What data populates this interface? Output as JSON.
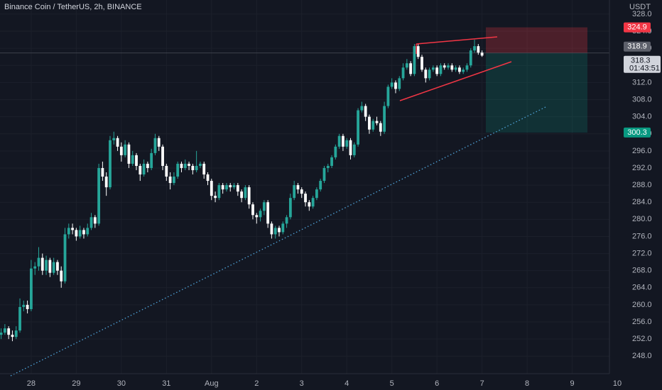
{
  "chart_data": {
    "type": "candlestick",
    "title": "Binance Coin / TetherUS, 2h, BINANCE",
    "currency": "USDT",
    "up_color": "#26a69a",
    "down_color": "#ffffff",
    "grid": true,
    "ylim": [
      243.9,
      331.3
    ],
    "yticks": [
      {
        "value": 248,
        "label": "248.0"
      },
      {
        "value": 252,
        "label": "252.0"
      },
      {
        "value": 256,
        "label": "256.0"
      },
      {
        "value": 260,
        "label": "260.0"
      },
      {
        "value": 264,
        "label": "264.0"
      },
      {
        "value": 268,
        "label": "268.0"
      },
      {
        "value": 272,
        "label": "272.0"
      },
      {
        "value": 276,
        "label": "276.0"
      },
      {
        "value": 280,
        "label": "280.0"
      },
      {
        "value": 284,
        "label": "284.0"
      },
      {
        "value": 288,
        "label": "288.0"
      },
      {
        "value": 292,
        "label": "292.0"
      },
      {
        "value": 296,
        "label": "296.0"
      },
      {
        "value": 300,
        "label": "300.0"
      },
      {
        "value": 304,
        "label": "304.0"
      },
      {
        "value": 308,
        "label": "308.0"
      },
      {
        "value": 312,
        "label": "312.0"
      },
      {
        "value": 316,
        "label": "316.0"
      },
      {
        "value": 320,
        "label": "320.0"
      },
      {
        "value": 324,
        "label": "324.0"
      },
      {
        "value": 328,
        "label": "328.0"
      }
    ],
    "xlim": [
      -0.3,
      175.9
    ],
    "xticks": [
      {
        "value": 8,
        "label": "28"
      },
      {
        "value": 20,
        "label": "29"
      },
      {
        "value": 32,
        "label": "30"
      },
      {
        "value": 44,
        "label": "31"
      },
      {
        "value": 56,
        "label": "Aug"
      },
      {
        "value": 68,
        "label": "2"
      },
      {
        "value": 80,
        "label": "3"
      },
      {
        "value": 92,
        "label": "4"
      },
      {
        "value": 104,
        "label": "5"
      },
      {
        "value": 116,
        "label": "6"
      },
      {
        "value": 128,
        "label": "7"
      },
      {
        "value": 140,
        "label": "8"
      },
      {
        "value": 152,
        "label": "9"
      },
      {
        "value": 164,
        "label": "10"
      }
    ],
    "candles": [
      [
        253,
        254.5,
        252,
        253.5
      ],
      [
        253.5,
        255.5,
        253,
        254.5
      ],
      [
        254.5,
        255,
        252,
        253
      ],
      [
        253,
        254,
        251.5,
        252.5
      ],
      [
        252.5,
        255,
        252,
        254
      ],
      [
        254,
        261.5,
        253.5,
        259.5
      ],
      [
        259.5,
        261,
        258.5,
        260
      ],
      [
        260,
        261,
        258,
        259
      ],
      [
        259,
        270.5,
        258.5,
        268.5
      ],
      [
        268.5,
        270,
        267,
        269
      ],
      [
        269,
        273.5,
        268,
        271
      ],
      [
        271,
        272,
        267,
        268
      ],
      [
        268,
        271.5,
        267,
        270.5
      ],
      [
        270.5,
        271,
        266.5,
        267.5
      ],
      [
        267.5,
        271,
        267,
        270
      ],
      [
        270,
        270.5,
        267,
        268
      ],
      [
        268,
        269,
        264,
        265.5
      ],
      [
        265.5,
        278,
        265,
        276.5
      ],
      [
        276.5,
        279,
        275.5,
        278
      ],
      [
        278,
        279,
        276.5,
        277.5
      ],
      [
        277.5,
        278,
        275,
        276
      ],
      [
        276,
        278.5,
        275.5,
        277.5
      ],
      [
        277.5,
        278,
        275.5,
        276.5
      ],
      [
        276.5,
        279,
        276,
        278
      ],
      [
        278,
        281.5,
        277.5,
        280.5
      ],
      [
        280.5,
        281,
        278,
        279
      ],
      [
        279,
        293,
        278.5,
        292
      ],
      [
        292,
        293.5,
        289,
        290
      ],
      [
        290,
        291,
        285.5,
        287.5
      ],
      [
        287.5,
        299.5,
        287,
        298.5
      ],
      [
        298.5,
        300.5,
        297.5,
        299
      ],
      [
        299,
        299.5,
        296,
        297
      ],
      [
        297,
        298,
        293.5,
        295
      ],
      [
        295,
        298.5,
        294.5,
        297.5
      ],
      [
        297.5,
        298,
        292,
        293
      ],
      [
        293,
        296,
        292.5,
        295
      ],
      [
        295,
        295.5,
        291.5,
        292.5
      ],
      [
        292.5,
        293,
        289,
        290.5
      ],
      [
        290.5,
        294,
        290,
        293
      ],
      [
        293,
        293.5,
        291,
        292
      ],
      [
        292,
        296.5,
        291.5,
        295.5
      ],
      [
        295.5,
        300,
        295,
        299
      ],
      [
        299,
        299.5,
        296,
        297
      ],
      [
        297,
        297.5,
        291.5,
        292.5
      ],
      [
        292.5,
        293,
        289,
        290
      ],
      [
        290,
        291,
        287,
        288.5
      ],
      [
        288.5,
        291,
        288,
        290
      ],
      [
        290,
        293.5,
        289.5,
        293
      ],
      [
        293,
        293.5,
        291,
        292
      ],
      [
        292,
        294,
        291.5,
        293
      ],
      [
        293,
        293.5,
        291.5,
        292.5
      ],
      [
        292.5,
        293,
        290.5,
        291.5
      ],
      [
        291.5,
        296,
        291,
        292.5
      ],
      [
        292.5,
        293.5,
        292,
        293
      ],
      [
        293,
        293.5,
        289.5,
        290.5
      ],
      [
        290.5,
        291,
        288,
        289
      ],
      [
        289,
        289.5,
        284.5,
        285.5
      ],
      [
        285.5,
        286.5,
        284,
        285
      ],
      [
        285,
        288.5,
        284.5,
        288
      ],
      [
        288,
        288.5,
        286,
        287
      ],
      [
        287,
        288.5,
        286.5,
        288
      ],
      [
        288,
        288.5,
        286.5,
        287.5
      ],
      [
        287.5,
        288.5,
        287,
        288
      ],
      [
        288,
        288.5,
        285.5,
        286.5
      ],
      [
        286.5,
        287,
        284,
        285
      ],
      [
        285,
        288,
        284.5,
        287.5
      ],
      [
        287.5,
        288,
        282.5,
        283.5
      ],
      [
        283.5,
        284,
        280,
        281
      ],
      [
        281,
        281.5,
        279,
        280.5
      ],
      [
        280.5,
        282.5,
        279.5,
        282
      ],
      [
        282,
        284.5,
        281,
        284
      ],
      [
        284,
        284.5,
        278,
        279
      ],
      [
        279,
        279.5,
        275.5,
        276.5
      ],
      [
        276.5,
        278.5,
        275.5,
        278
      ],
      [
        278,
        278.5,
        276,
        277
      ],
      [
        277,
        279.5,
        276.5,
        279
      ],
      [
        279,
        281,
        278,
        280.5
      ],
      [
        280.5,
        286,
        280,
        285
      ],
      [
        285,
        289,
        284.5,
        288
      ],
      [
        288,
        288.5,
        286,
        287
      ],
      [
        287,
        287.5,
        285,
        286
      ],
      [
        286,
        286.5,
        283,
        284
      ],
      [
        284,
        284.5,
        282,
        283
      ],
      [
        283,
        285.5,
        282.5,
        285
      ],
      [
        285,
        287.5,
        284.5,
        287
      ],
      [
        287,
        289.5,
        286.5,
        289
      ],
      [
        289,
        292.5,
        288.5,
        292
      ],
      [
        292,
        293,
        291,
        292.5
      ],
      [
        292.5,
        295,
        292,
        294.5
      ],
      [
        294.5,
        297.5,
        294,
        297
      ],
      [
        297,
        300,
        296.5,
        299.5
      ],
      [
        299.5,
        300,
        296,
        297
      ],
      [
        297,
        299,
        296.5,
        298.5
      ],
      [
        298.5,
        299,
        294,
        295
      ],
      [
        295,
        298,
        294.5,
        297.5
      ],
      [
        297.5,
        306,
        297,
        305.5
      ],
      [
        305.5,
        307.5,
        305,
        306.5
      ],
      [
        306.5,
        307,
        303,
        304
      ],
      [
        304,
        304.5,
        300,
        301
      ],
      [
        301,
        303.5,
        300.5,
        303
      ],
      [
        303,
        304,
        302,
        302.5
      ],
      [
        302.5,
        303,
        299.5,
        300.5
      ],
      [
        300.5,
        307.5,
        300,
        306.5
      ],
      [
        306.5,
        311.5,
        306,
        311
      ],
      [
        311,
        313,
        310.5,
        312
      ],
      [
        312,
        312.5,
        309.5,
        310.5
      ],
      [
        310.5,
        313.5,
        310,
        313
      ],
      [
        313,
        316.5,
        312.5,
        315.5
      ],
      [
        315.5,
        317.5,
        315,
        316.5
      ],
      [
        316.5,
        317,
        313.5,
        314
      ],
      [
        314,
        321,
        313.5,
        320.5
      ],
      [
        320.5,
        321,
        317.5,
        318
      ],
      [
        318,
        318.5,
        314.5,
        315
      ],
      [
        315,
        315.5,
        312,
        313
      ],
      [
        313,
        315.5,
        312.5,
        315
      ],
      [
        315,
        316,
        314.5,
        315.5
      ],
      [
        315.5,
        316,
        313.5,
        314
      ],
      [
        314,
        316.5,
        313.5,
        316
      ],
      [
        316,
        316.5,
        315,
        315.5
      ],
      [
        315.5,
        316.5,
        315,
        316
      ],
      [
        316,
        316.5,
        314.5,
        315
      ],
      [
        315,
        316,
        314.5,
        315.5
      ],
      [
        315.5,
        316,
        314,
        314.5
      ],
      [
        314.5,
        315.5,
        314,
        315
      ],
      [
        315,
        316.5,
        314.5,
        316
      ],
      [
        316,
        320,
        315.5,
        319.5
      ],
      [
        319.5,
        322,
        319,
        320.5
      ],
      [
        320.5,
        321,
        318.5,
        319
      ],
      [
        319,
        319.5,
        318,
        318.3
      ]
    ],
    "position": {
      "stop": 324.9,
      "entry": 318.9,
      "target": 300.3,
      "stop_color": "#f23645",
      "target_color": "#089981"
    },
    "last_price": 318.3,
    "countdown": "01:43:51"
  }
}
